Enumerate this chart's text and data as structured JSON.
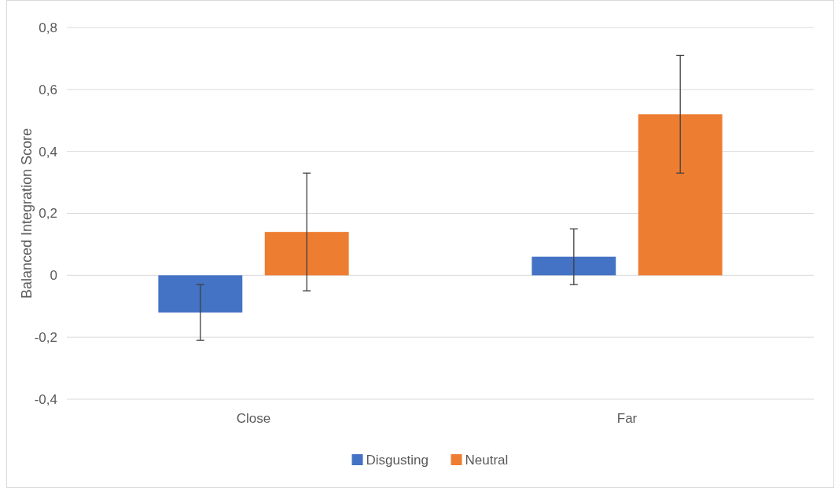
{
  "chart_data": {
    "type": "bar",
    "ylabel": "Balanced Integration Score",
    "categories": [
      "Close",
      "Far"
    ],
    "series": [
      {
        "name": "Disgusting",
        "color": "#4472c4",
        "values": [
          -0.12,
          0.06
        ],
        "errors": [
          0.09,
          0.09
        ]
      },
      {
        "name": "Neutral",
        "color": "#ed7d31",
        "values": [
          0.14,
          0.52
        ],
        "errors": [
          0.19,
          0.19
        ]
      }
    ],
    "ylim": [
      -0.4,
      0.8
    ],
    "yticks": [
      {
        "value": -0.4,
        "label": "-0,4"
      },
      {
        "value": -0.2,
        "label": "-0,2"
      },
      {
        "value": 0,
        "label": "0"
      },
      {
        "value": 0.2,
        "label": "0,2"
      },
      {
        "value": 0.4,
        "label": "0,4"
      },
      {
        "value": 0.6,
        "label": "0,6"
      },
      {
        "value": 0.8,
        "label": "0,8"
      }
    ],
    "grid": "y",
    "legend": "bottom"
  }
}
